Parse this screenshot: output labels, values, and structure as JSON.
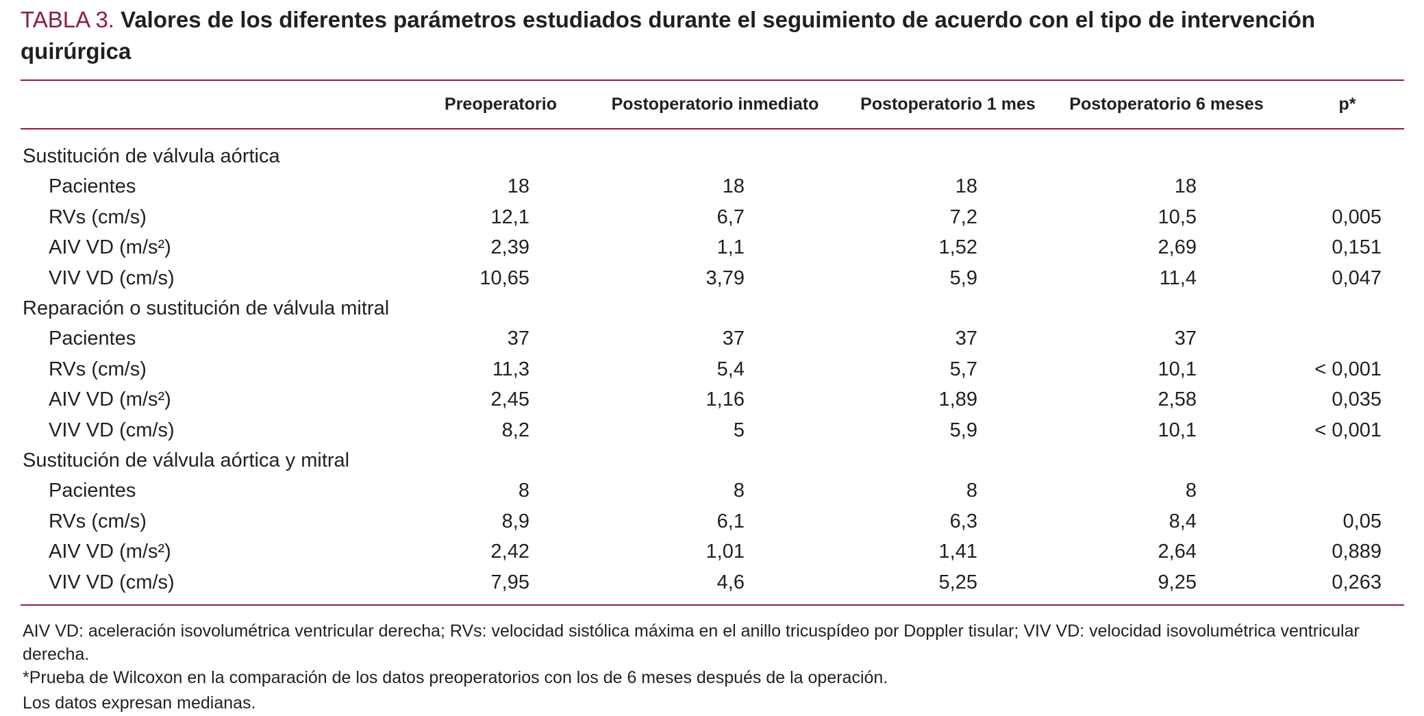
{
  "title": {
    "label": "TABLA 3.",
    "text": "Valores de los diferentes parámetros estudiados durante el seguimiento de acuerdo con el tipo de intervención quirúrgica"
  },
  "header": {
    "columns": [
      "Preoperatorio",
      "Postoperatorio inmediato",
      "Postoperatorio 1 mes",
      "Postoperatorio 6 meses",
      "p*"
    ]
  },
  "groups": [
    {
      "name": "Sustitución de válvula aórtica",
      "rows": [
        {
          "label": "Pacientes",
          "values": [
            "18",
            "18",
            "18",
            "18",
            ""
          ]
        },
        {
          "label": "RVs (cm/s)",
          "values": [
            "12,1",
            "6,7",
            "7,2",
            "10,5",
            "0,005"
          ]
        },
        {
          "label": "AIV VD (m/s²)",
          "values": [
            "2,39",
            "1,1",
            "1,52",
            "2,69",
            "0,151"
          ]
        },
        {
          "label": "VIV VD (cm/s)",
          "values": [
            "10,65",
            "3,79",
            "5,9",
            "11,4",
            "0,047"
          ]
        }
      ]
    },
    {
      "name": "Reparación o sustitución de válvula mitral",
      "rows": [
        {
          "label": "Pacientes",
          "values": [
            "37",
            "37",
            "37",
            "37",
            ""
          ]
        },
        {
          "label": "RVs (cm/s)",
          "values": [
            "11,3",
            "5,4",
            "5,7",
            "10,1",
            "< 0,001"
          ]
        },
        {
          "label": "AIV VD (m/s²)",
          "values": [
            "2,45",
            "1,16",
            "1,89",
            "2,58",
            "0,035"
          ]
        },
        {
          "label": "VIV VD (cm/s)",
          "values": [
            "8,2",
            "5",
            "5,9",
            "10,1",
            "< 0,001"
          ]
        }
      ]
    },
    {
      "name": "Sustitución de válvula aórtica y mitral",
      "rows": [
        {
          "label": "Pacientes",
          "values": [
            "8",
            "8",
            "8",
            "8",
            ""
          ]
        },
        {
          "label": "RVs (cm/s)",
          "values": [
            "8,9",
            "6,1",
            "6,3",
            "8,4",
            "0,05"
          ]
        },
        {
          "label": "AIV VD (m/s²)",
          "values": [
            "2,42",
            "1,01",
            "1,41",
            "2,64",
            "0,889"
          ]
        },
        {
          "label": "VIV VD (cm/s)",
          "values": [
            "7,95",
            "4,6",
            "5,25",
            "9,25",
            "0,263"
          ]
        }
      ]
    }
  ],
  "footnotes": [
    "AIV VD: aceleración isovolumétrica ventricular derecha; RVs: velocidad sistólica máxima en el anillo tricuspídeo por Doppler tisular; VIV VD: velocidad isovolumétrica ventricular derecha.",
    "*Prueba de Wilcoxon en la comparación de los datos preoperatorios con los de 6 meses después de la operación.",
    "Los datos expresan medianas."
  ]
}
